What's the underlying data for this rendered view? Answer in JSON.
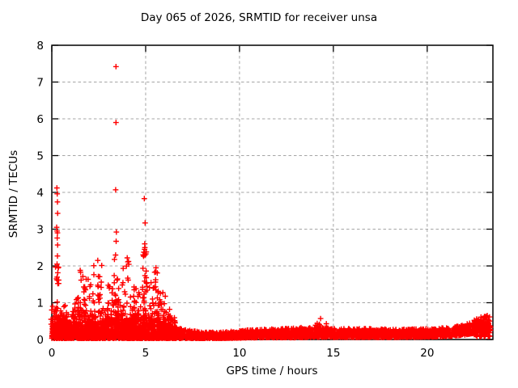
{
  "chart_data": {
    "type": "scatter",
    "title": "Day 065 of 2026, SRMTID for receiver unsa",
    "xlabel": "GPS time / hours",
    "ylabel": "SRMTID / TECUs",
    "xlim": [
      0,
      23.5
    ],
    "ylim": [
      0,
      8
    ],
    "xticks": [
      0,
      5,
      10,
      15,
      20
    ],
    "yticks": [
      0,
      1,
      2,
      3,
      4,
      5,
      6,
      7,
      8
    ],
    "grid": true,
    "legend": "none",
    "marker": {
      "shape": "plus",
      "size": 6.8
    },
    "colors": {
      "points": "#ff0000",
      "grid": "#a6a6a6",
      "axis": "#000000",
      "background": "#ffffff",
      "text": "#000000"
    },
    "description": "Dense 30-second SRMTID scatter: strong wave activity bursts 0-6.5 h (peaks 1-4 TECU, extreme outliers 5.9 and 7.42 TECU near 3.4 h, 3.8 TECU near 5 h), quiet band ~0.05-0.35 TECU from 7 h onward, slight bump near 14.3 h, rising to ~0.6 TECU after 22.5 h",
    "generator": {
      "seed": 42,
      "baseline": {
        "x_start": 0.02,
        "x_end": 23.37,
        "step": 0.008,
        "power": 1.7,
        "hours_top": [
          0.55,
          0.5,
          0.5,
          0.55,
          0.55,
          0.6,
          0.5,
          0.28,
          0.2,
          0.2,
          0.24,
          0.28,
          0.3,
          0.32,
          0.34,
          0.3,
          0.3,
          0.3,
          0.28,
          0.28,
          0.3,
          0.32,
          0.4,
          0.65
        ],
        "hours_bottom": [
          0.03,
          0.03,
          0.03,
          0.03,
          0.03,
          0.03,
          0.03,
          0.03,
          0.03,
          0.03,
          0.04,
          0.05,
          0.05,
          0.05,
          0.06,
          0.06,
          0.06,
          0.06,
          0.06,
          0.06,
          0.07,
          0.08,
          0.12,
          0.22
        ]
      },
      "dense_low": {
        "x_start": 0.0,
        "x_end": 6.6,
        "step": 0.012,
        "top": 0.75,
        "power": 2.2
      },
      "bursts": [
        [
          0.12,
          0.18,
          1.0,
          22
        ],
        [
          0.28,
          0.1,
          2.1,
          26
        ],
        [
          0.55,
          0.3,
          1.15,
          28
        ],
        [
          1.0,
          0.35,
          0.75,
          26
        ],
        [
          1.35,
          0.2,
          1.1,
          20
        ],
        [
          1.62,
          0.25,
          1.9,
          30
        ],
        [
          1.95,
          0.25,
          1.7,
          28
        ],
        [
          2.2,
          0.2,
          1.1,
          20
        ],
        [
          2.45,
          0.22,
          2.1,
          30
        ],
        [
          2.75,
          0.25,
          1.3,
          24
        ],
        [
          3.1,
          0.22,
          1.6,
          24
        ],
        [
          3.42,
          0.1,
          2.4,
          26
        ],
        [
          3.7,
          0.2,
          1.5,
          22
        ],
        [
          4.0,
          0.25,
          2.2,
          28
        ],
        [
          4.3,
          0.2,
          1.2,
          20
        ],
        [
          4.55,
          0.2,
          1.6,
          22
        ],
        [
          4.95,
          0.12,
          2.65,
          40
        ],
        [
          5.2,
          0.2,
          1.55,
          25
        ],
        [
          5.55,
          0.22,
          1.95,
          34
        ],
        [
          5.85,
          0.2,
          1.3,
          24
        ],
        [
          6.1,
          0.2,
          0.85,
          20
        ],
        [
          6.38,
          0.2,
          0.55,
          16
        ],
        [
          14.3,
          0.35,
          0.48,
          14
        ],
        [
          22.9,
          0.45,
          0.55,
          30
        ],
        [
          23.2,
          0.25,
          0.6,
          20
        ]
      ],
      "outliers": [
        [
          3.42,
          7.42
        ],
        [
          3.42,
          5.9
        ],
        [
          3.4,
          4.07
        ],
        [
          3.44,
          2.92
        ],
        [
          3.43,
          2.67
        ],
        [
          0.27,
          4.12
        ],
        [
          0.29,
          3.96
        ],
        [
          0.3,
          3.74
        ],
        [
          0.31,
          3.43
        ],
        [
          0.26,
          3.05
        ],
        [
          0.28,
          2.95
        ],
        [
          0.3,
          2.9
        ],
        [
          0.29,
          2.76
        ],
        [
          0.31,
          2.57
        ],
        [
          0.3,
          2.27
        ],
        [
          0.28,
          2.05
        ],
        [
          4.93,
          3.83
        ],
        [
          4.97,
          3.17
        ],
        [
          4.95,
          2.6
        ],
        [
          4.96,
          2.5
        ],
        [
          4.94,
          2.45
        ],
        [
          2.45,
          2.15
        ],
        [
          4.02,
          2.22
        ],
        [
          5.55,
          1.95
        ],
        [
          14.32,
          0.57
        ],
        [
          23.2,
          0.65
        ]
      ]
    }
  }
}
